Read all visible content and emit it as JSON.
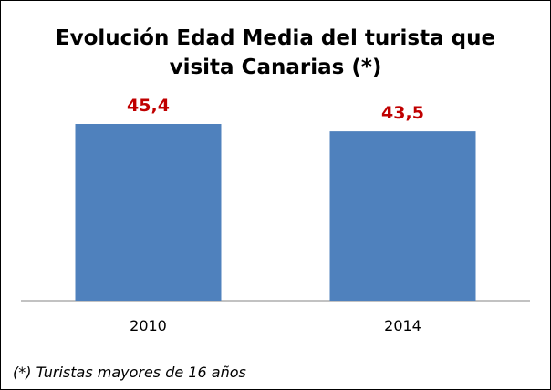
{
  "chart_data": {
    "type": "bar",
    "title_lines": [
      "Evolución Edad Media del turista que",
      "visita Canarias (*)"
    ],
    "categories": [
      "2010",
      "2014"
    ],
    "values": [
      45.4,
      43.5
    ],
    "data_labels": [
      "45,4",
      "43,5"
    ],
    "xlabel": "",
    "ylabel": "",
    "ylim": [
      0,
      50
    ],
    "grid": false,
    "legend": "none",
    "bar_color": "#4F81BD",
    "label_color": "#C00000",
    "baseline_value": 0
  },
  "footnote": "(*) Turistas mayores de 16 años"
}
